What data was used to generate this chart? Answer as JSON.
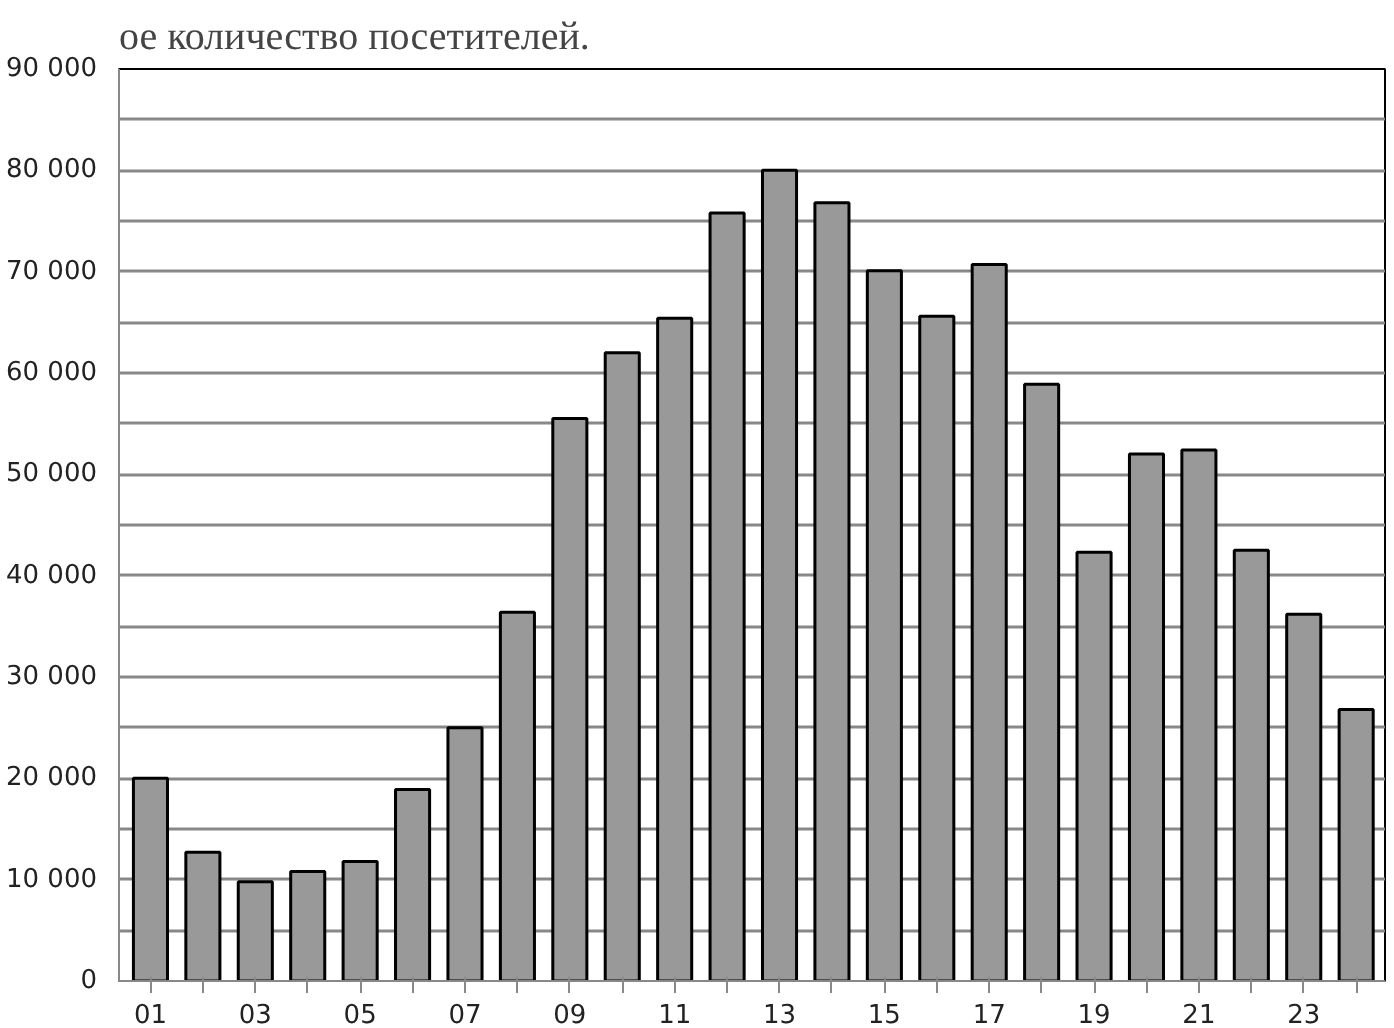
{
  "chart_data": {
    "type": "bar",
    "title": "ое количество посетителей.",
    "categories": [
      "01",
      null,
      "03",
      null,
      "05",
      null,
      "07",
      null,
      "09",
      null,
      "11",
      null,
      "13",
      null,
      "15",
      null,
      "17",
      null,
      "19",
      null,
      "21",
      null,
      "23",
      null
    ],
    "values": [
      20000,
      12700,
      9800,
      10800,
      11800,
      18900,
      25000,
      36400,
      55500,
      62000,
      65400,
      75800,
      80000,
      76800,
      70100,
      65600,
      70700,
      58900,
      42300,
      52000,
      52400,
      42500,
      36200,
      26800
    ],
    "color": "#999999",
    "ylim": [
      0,
      90000
    ],
    "yticks": [
      0,
      {
        "value": 5000,
        "label": null
      },
      {
        "value": 10000,
        "label": "10 000"
      },
      {
        "value": 15000,
        "label": null
      },
      {
        "value": 20000,
        "label": "20 000"
      },
      {
        "value": 25000,
        "label": null
      },
      {
        "value": 30000,
        "label": "30 000"
      },
      {
        "value": 35000,
        "label": null
      },
      {
        "value": 40000,
        "label": "40 000"
      },
      {
        "value": 45000,
        "label": null
      },
      {
        "value": 50000,
        "label": "50 000"
      },
      {
        "value": 55000,
        "label": null
      },
      {
        "value": 60000,
        "label": "60 000"
      },
      {
        "value": 65000,
        "label": null
      },
      {
        "value": 70000,
        "label": "70 000"
      },
      {
        "value": 75000,
        "label": null
      },
      {
        "value": 80000,
        "label": "80 000"
      },
      {
        "value": 85000,
        "label": null
      },
      {
        "value": 90000,
        "label": "90 000"
      }
    ],
    "grid": "y"
  }
}
